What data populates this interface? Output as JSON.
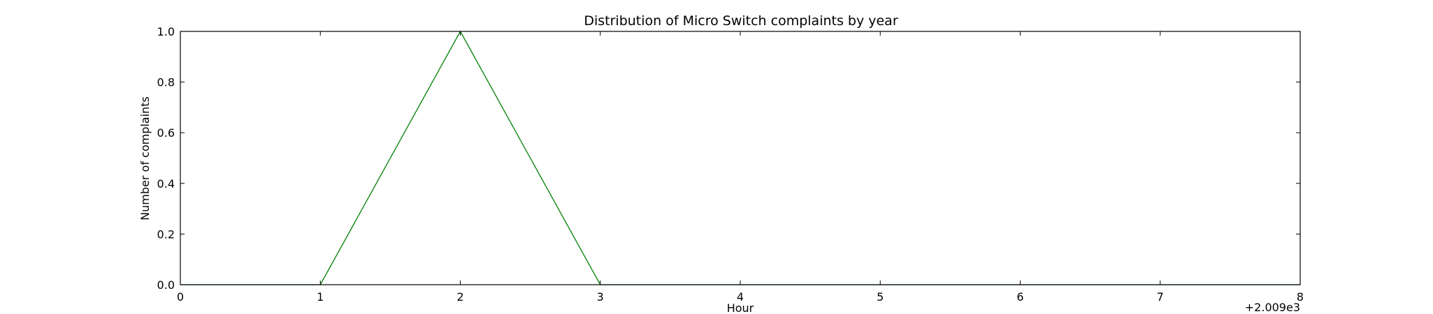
{
  "chart_data": {
    "type": "line",
    "title": "Distribution of  Micro Switch complaints by year",
    "xlabel": "Hour",
    "ylabel": "Number of complaints",
    "x_offset_label": "+2.009e3",
    "x_offset_value": 2009,
    "xlim": [
      0,
      8
    ],
    "ylim": [
      0.0,
      1.0
    ],
    "x_ticks": [
      0,
      1,
      2,
      3,
      4,
      5,
      6,
      7,
      8
    ],
    "x_tick_labels": [
      "0",
      "1",
      "2",
      "3",
      "4",
      "5",
      "6",
      "7",
      "8"
    ],
    "y_ticks": [
      0.0,
      0.2,
      0.4,
      0.6,
      0.8,
      1.0
    ],
    "y_tick_labels": [
      "0.0",
      "0.2",
      "0.4",
      "0.6",
      "0.8",
      "1.0"
    ],
    "grid": false,
    "series": [
      {
        "color": "#008000",
        "x": [
          0,
          1,
          2,
          3,
          4,
          5,
          6,
          7,
          8
        ],
        "y": [
          0,
          0,
          1,
          0,
          0,
          0,
          0,
          0,
          0
        ]
      }
    ]
  }
}
